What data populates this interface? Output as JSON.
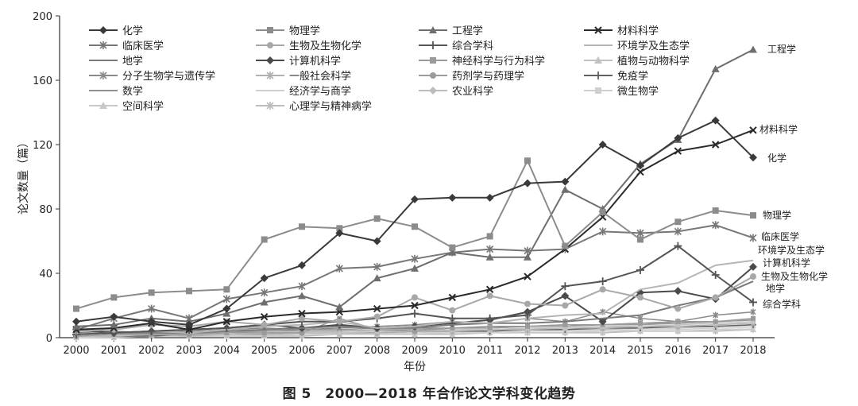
{
  "figure": {
    "caption": "图 5　2000—2018 年合作论文学科变化趋势"
  },
  "chart_data": {
    "type": "line",
    "title": "",
    "xlabel": "年份",
    "ylabel": "论文数量（篇）",
    "ylim": [
      0,
      200
    ],
    "yticks": [
      0,
      40,
      80,
      120,
      160,
      200
    ],
    "x": [
      "2000",
      "2001",
      "2002",
      "2003",
      "2004",
      "2005",
      "2006",
      "2007",
      "2008",
      "2009",
      "2010",
      "2011",
      "2012",
      "2013",
      "2014",
      "2015",
      "2016",
      "2017",
      "2018"
    ],
    "grid": false,
    "legend_position": "top-left",
    "series": [
      {
        "name": "化学",
        "marker": "diamond",
        "color": "#3a3a3a",
        "end_label": "化学",
        "values": [
          10,
          13,
          10,
          8,
          18,
          37,
          45,
          65,
          60,
          86,
          87,
          87,
          96,
          97,
          120,
          107,
          124,
          135,
          112
        ]
      },
      {
        "name": "物理学",
        "marker": "square",
        "color": "#8c8c8c",
        "end_label": "物理学",
        "values": [
          18,
          25,
          28,
          29,
          30,
          61,
          69,
          68,
          74,
          69,
          56,
          63,
          110,
          57,
          78,
          61,
          72,
          79,
          76
        ]
      },
      {
        "name": "工程学",
        "marker": "triangle",
        "color": "#6e6e6e",
        "end_label": "工程学",
        "values": [
          7,
          8,
          12,
          10,
          15,
          22,
          26,
          19,
          37,
          43,
          53,
          50,
          50,
          92,
          80,
          108,
          123,
          167,
          179
        ]
      },
      {
        "name": "材料科学",
        "marker": "x",
        "color": "#2a2a2a",
        "end_label": "材料科学",
        "values": [
          5,
          6,
          9,
          5,
          10,
          13,
          15,
          16,
          18,
          20,
          25,
          30,
          38,
          55,
          75,
          103,
          116,
          120,
          129
        ]
      },
      {
        "name": "临床医学",
        "marker": "starx",
        "color": "#777777",
        "end_label": "临床医学",
        "values": [
          5,
          12,
          18,
          12,
          24,
          28,
          32,
          43,
          44,
          49,
          53,
          55,
          54,
          55,
          66,
          65,
          66,
          70,
          62
        ]
      },
      {
        "name": "生物及生物化学",
        "marker": "circle",
        "color": "#a8a8a8",
        "end_label": "生物及生物化学",
        "values": [
          4,
          5,
          8,
          7,
          10,
          8,
          12,
          10,
          13,
          25,
          17,
          26,
          21,
          20,
          30,
          25,
          18,
          25,
          38
        ]
      },
      {
        "name": "综合学科",
        "marker": "plus",
        "color": "#555555",
        "end_label": "综合学科",
        "values": [
          2,
          3,
          4,
          5,
          6,
          8,
          10,
          10,
          12,
          15,
          12,
          12,
          14,
          32,
          35,
          42,
          57,
          39,
          22
        ]
      },
      {
        "name": "环境学及生态学",
        "marker": "none",
        "color": "#b5b5b5",
        "end_label": "环境学及生态学",
        "values": [
          2,
          3,
          4,
          3,
          5,
          7,
          8,
          10,
          6,
          7,
          10,
          9,
          12,
          14,
          15,
          30,
          34,
          45,
          48
        ]
      },
      {
        "name": "地学",
        "marker": "none",
        "color": "#7a7a7a",
        "end_label": "地学",
        "values": [
          2,
          3,
          3,
          3,
          4,
          5,
          6,
          7,
          6,
          6,
          8,
          9,
          9,
          10,
          12,
          14,
          20,
          25,
          35
        ]
      },
      {
        "name": "计算机科学",
        "marker": "diamond",
        "color": "#4a4a4a",
        "end_label": "计算机科学",
        "values": [
          5,
          3,
          4,
          5,
          6,
          8,
          6,
          8,
          6,
          7,
          9,
          11,
          16,
          26,
          10,
          28,
          29,
          24,
          44
        ]
      },
      {
        "name": "神经科学与行为科学",
        "marker": "square",
        "color": "#9a9a9a",
        "end_label": "",
        "values": [
          1,
          2,
          2,
          2,
          3,
          3,
          3,
          12,
          5,
          4,
          6,
          6,
          7,
          8,
          8,
          9,
          10,
          10,
          12
        ]
      },
      {
        "name": "植物与动物科学",
        "marker": "triangle",
        "color": "#c2c2c2",
        "end_label": "",
        "values": [
          1,
          1,
          2,
          2,
          2,
          3,
          3,
          3,
          4,
          4,
          5,
          5,
          6,
          6,
          7,
          7,
          8,
          9,
          10
        ]
      },
      {
        "name": "分子生物学与遗传学",
        "marker": "starx",
        "color": "#8a8a8a",
        "end_label": "",
        "values": [
          3,
          4,
          3,
          4,
          5,
          6,
          5,
          6,
          7,
          8,
          10,
          9,
          12,
          10,
          16,
          12,
          10,
          14,
          16
        ]
      },
      {
        "name": "一般社会科学",
        "marker": "starx",
        "color": "#b0b0b0",
        "end_label": "",
        "values": [
          1,
          1,
          2,
          1,
          2,
          2,
          3,
          3,
          3,
          4,
          4,
          5,
          5,
          6,
          6,
          7,
          7,
          8,
          9
        ]
      },
      {
        "name": "药剂学与药理学",
        "marker": "circle",
        "color": "#9b9b9b",
        "end_label": "",
        "values": [
          1,
          2,
          2,
          3,
          3,
          4,
          4,
          4,
          5,
          5,
          6,
          6,
          7,
          7,
          8,
          8,
          9,
          10,
          11
        ]
      },
      {
        "name": "免疫学",
        "marker": "plus",
        "color": "#606060",
        "end_label": "",
        "values": [
          1,
          1,
          1,
          2,
          2,
          2,
          3,
          3,
          3,
          4,
          4,
          4,
          5,
          5,
          6,
          6,
          7,
          7,
          8
        ]
      },
      {
        "name": "数学",
        "marker": "none",
        "color": "#909090",
        "end_label": "",
        "values": [
          2,
          3,
          3,
          3,
          4,
          4,
          5,
          5,
          6,
          6,
          6,
          7,
          7,
          8,
          8,
          9,
          9,
          10,
          11
        ]
      },
      {
        "name": "经济学与商学",
        "marker": "none",
        "color": "#d0d0d0",
        "end_label": "",
        "values": [
          0,
          1,
          1,
          1,
          1,
          2,
          2,
          2,
          2,
          3,
          3,
          3,
          4,
          4,
          4,
          5,
          5,
          6,
          6
        ]
      },
      {
        "name": "农业科学",
        "marker": "diamond",
        "color": "#bdbdbd",
        "end_label": "",
        "values": [
          1,
          1,
          1,
          2,
          2,
          2,
          3,
          3,
          3,
          3,
          4,
          4,
          5,
          5,
          5,
          6,
          6,
          7,
          8
        ]
      },
      {
        "name": "微生物学",
        "marker": "square",
        "color": "#cfcfcf",
        "end_label": "",
        "values": [
          1,
          1,
          2,
          2,
          2,
          2,
          3,
          3,
          3,
          4,
          4,
          4,
          5,
          5,
          5,
          6,
          6,
          7,
          7
        ]
      },
      {
        "name": "空间科学",
        "marker": "triangle",
        "color": "#c8c8c8",
        "end_label": "",
        "values": [
          0,
          1,
          1,
          1,
          1,
          1,
          2,
          2,
          2,
          2,
          3,
          3,
          3,
          3,
          4,
          4,
          4,
          5,
          5
        ]
      },
      {
        "name": "心理学与精神病学",
        "marker": "starx",
        "color": "#bcbcbc",
        "end_label": "",
        "values": [
          0,
          0,
          1,
          1,
          1,
          1,
          1,
          2,
          2,
          2,
          2,
          3,
          3,
          3,
          3,
          4,
          4,
          4,
          5
        ]
      }
    ]
  }
}
